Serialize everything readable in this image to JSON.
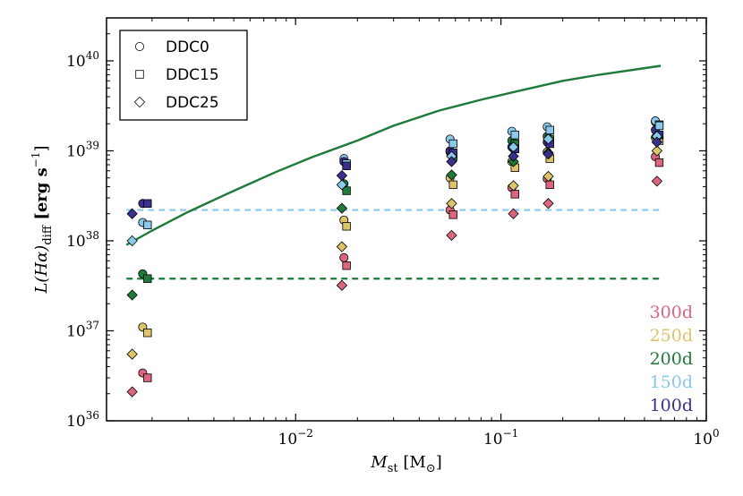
{
  "chart_data": {
    "type": "scatter",
    "title": "",
    "xlabel": {
      "main": "M",
      "sub": "st",
      "rest": " [M",
      "rest_sub": "⊙",
      "close": "]"
    },
    "ylabel": {
      "main": "L(Hα)",
      "sub": "diff",
      "rest": " [erg s",
      "sup": "−1",
      "close": "]"
    },
    "x_scale": "log",
    "y_scale": "log",
    "xlim": [
      0.0012,
      1.0
    ],
    "ylim": [
      1e+36,
      3e+40
    ],
    "x_ticks": [
      {
        "value": 0.01,
        "base": "10",
        "exp": "−2"
      },
      {
        "value": 0.1,
        "base": "10",
        "exp": "−1"
      },
      {
        "value": 1.0,
        "base": "10",
        "exp": "0"
      }
    ],
    "y_ticks": [
      {
        "value": 1e+36,
        "base": "10",
        "exp": "36"
      },
      {
        "value": 1e+37,
        "base": "10",
        "exp": "37"
      },
      {
        "value": 1e+38,
        "base": "10",
        "exp": "38"
      },
      {
        "value": 1e+39,
        "base": "10",
        "exp": "39"
      },
      {
        "value": 1e+40,
        "base": "10",
        "exp": "40"
      }
    ],
    "colors": {
      "300d": "#d9667c",
      "250d": "#ddc46b",
      "200d": "#1e7a3a",
      "150d": "#8cc8ea",
      "100d": "#3a318f"
    },
    "models": [
      {
        "name": "DDC0",
        "marker": "circle"
      },
      {
        "name": "DDC15",
        "marker": "square"
      },
      {
        "name": "DDC25",
        "marker": "diamond"
      }
    ],
    "legend": {
      "location": "upper-left",
      "entries": [
        "DDC0",
        "DDC15",
        "DDC25"
      ]
    },
    "time_labels": [
      "300d",
      "250d",
      "200d",
      "150d",
      "100d"
    ],
    "curve": {
      "color": "#1e7a3a",
      "x": [
        0.0015,
        0.002,
        0.003,
        0.005,
        0.008,
        0.012,
        0.02,
        0.03,
        0.05,
        0.08,
        0.12,
        0.2,
        0.3,
        0.6
      ],
      "y": [
        9e+37,
        1.3e+38,
        2.1e+38,
        3.6e+38,
        5.8e+38,
        8.5e+38,
        1.3e+39,
        1.9e+39,
        2.8e+39,
        3.7e+39,
        4.6e+39,
        6e+39,
        7e+39,
        8.8e+39
      ]
    },
    "hlines": [
      {
        "y": 2.2e+38,
        "color": "#8cc8ea",
        "style": "dashed"
      },
      {
        "y": 3.8e+37,
        "color": "#1e7a3a",
        "style": "dashed"
      }
    ],
    "series": [
      {
        "model": "DDC0",
        "marker": "circle",
        "x": 0.0018,
        "values": {
          "300d": 3.4e+36,
          "250d": 1.1e+37,
          "200d": 4.3e+37,
          "150d": 1.6e+38,
          "100d": 2.6e+38
        }
      },
      {
        "model": "DDC15",
        "marker": "square",
        "x": 0.0019,
        "values": {
          "300d": 3e+36,
          "250d": 9.5e+36,
          "200d": 3.8e+37,
          "150d": 1.5e+38,
          "100d": 2.6e+38
        }
      },
      {
        "model": "DDC25",
        "marker": "diamond",
        "x": 0.0016,
        "values": {
          "300d": 2.1e+36,
          "250d": 5.5e+36,
          "200d": 2.5e+37,
          "150d": 1e+38,
          "100d": 2e+38
        }
      },
      {
        "model": "DDC0",
        "marker": "circle",
        "x": 0.0172,
        "values": {
          "300d": 6.5e+37,
          "250d": 1.7e+38,
          "200d": 4.3e+38,
          "150d": 8.2e+38,
          "100d": 7.6e+38
        }
      },
      {
        "model": "DDC15",
        "marker": "square",
        "x": 0.0177,
        "values": {
          "300d": 5.3e+37,
          "250d": 1.45e+38,
          "200d": 3.6e+38,
          "150d": 7.2e+38,
          "100d": 6.8e+38
        }
      },
      {
        "model": "DDC25",
        "marker": "diamond",
        "x": 0.0168,
        "values": {
          "300d": 3.2e+37,
          "250d": 8.6e+37,
          "200d": 2.3e+38,
          "150d": 4.2e+38,
          "100d": 5.3e+38
        }
      },
      {
        "model": "DDC0",
        "marker": "circle",
        "x": 0.0565,
        "values": {
          "300d": 2.2e+38,
          "250d": 5e+38,
          "200d": 9.7e+38,
          "150d": 1.35e+39,
          "100d": 1e+39
        }
      },
      {
        "model": "DDC15",
        "marker": "square",
        "x": 0.0585,
        "values": {
          "300d": 1.95e+38,
          "250d": 4.2e+38,
          "200d": 8.6e+38,
          "150d": 1.2e+39,
          "100d": 9.5e+38
        }
      },
      {
        "model": "DDC25",
        "marker": "diamond",
        "x": 0.0575,
        "values": {
          "300d": 1.15e+38,
          "250d": 2.6e+38,
          "200d": 5.4e+38,
          "150d": 8.7e+38,
          "100d": 7.6e+38
        }
      },
      {
        "model": "DDC0",
        "marker": "circle",
        "x": 0.113,
        "values": {
          "300d": 3.9e+38,
          "250d": 7.6e+38,
          "200d": 1.3e+39,
          "150d": 1.65e+39,
          "100d": 1.1e+39
        }
      },
      {
        "model": "DDC15",
        "marker": "square",
        "x": 0.117,
        "values": {
          "300d": 3.3e+38,
          "250d": 6.5e+38,
          "200d": 1.2e+39,
          "150d": 1.5e+39,
          "100d": 1.05e+39
        }
      },
      {
        "model": "DDC25",
        "marker": "diamond",
        "x": 0.115,
        "values": {
          "300d": 2e+38,
          "250d": 4.1e+38,
          "200d": 7.6e+38,
          "150d": 1.1e+39,
          "100d": 8.7e+38
        }
      },
      {
        "model": "DDC0",
        "marker": "circle",
        "x": 0.168,
        "values": {
          "300d": 4.9e+38,
          "250d": 9.7e+38,
          "200d": 1.45e+39,
          "150d": 1.85e+39,
          "100d": 1.25e+39
        }
      },
      {
        "model": "DDC15",
        "marker": "square",
        "x": 0.173,
        "values": {
          "300d": 4.2e+38,
          "250d": 8.2e+38,
          "200d": 1.35e+39,
          "150d": 1.7e+39,
          "100d": 1.2e+39
        }
      },
      {
        "model": "DDC25",
        "marker": "diamond",
        "x": 0.17,
        "values": {
          "300d": 2.6e+38,
          "250d": 5.2e+38,
          "200d": 9.5e+38,
          "150d": 1.35e+39,
          "100d": 9.2e+38
        }
      },
      {
        "model": "DDC0",
        "marker": "circle",
        "x": 0.565,
        "values": {
          "300d": 8.6e+38,
          "250d": 1.4e+39,
          "200d": 2.1e+39,
          "150d": 2.15e+39,
          "100d": 1.7e+39
        }
      },
      {
        "model": "DDC15",
        "marker": "square",
        "x": 0.59,
        "values": {
          "300d": 7.4e+38,
          "250d": 1.3e+39,
          "200d": 1.95e+39,
          "150d": 1.9e+39,
          "100d": 1.5e+39
        }
      },
      {
        "model": "DDC25",
        "marker": "diamond",
        "x": 0.575,
        "values": {
          "300d": 4.6e+38,
          "250d": 1e+39,
          "200d": 1.4e+39,
          "150d": 1.45e+39,
          "100d": 1.25e+39
        }
      }
    ]
  }
}
